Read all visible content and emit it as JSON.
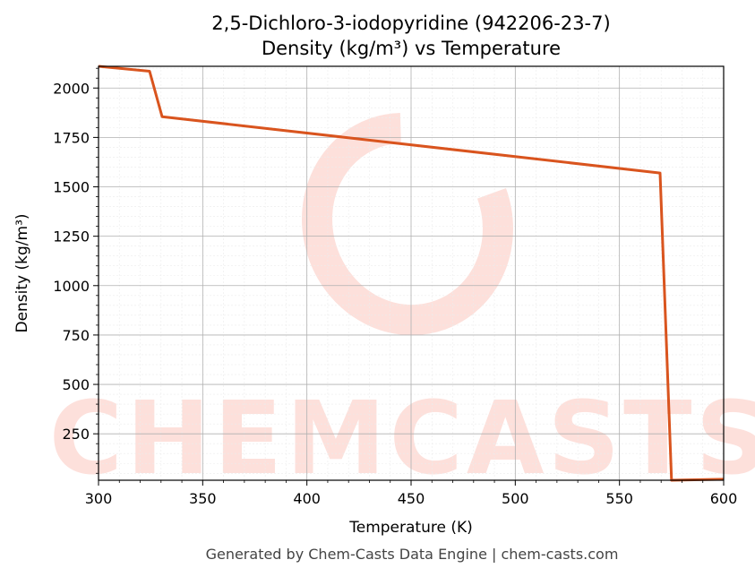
{
  "chart_data": {
    "type": "line",
    "title": "2,5-Dichloro-3-iodopyridine (942206-23-7)",
    "subtitle": "Density (kg/m³) vs Temperature",
    "xlabel": "Temperature (K)",
    "ylabel": "Density (kg/m³)",
    "xlim": [
      300,
      600
    ],
    "ylim": [
      15,
      2110
    ],
    "x_ticks": [
      300,
      350,
      400,
      450,
      500,
      550,
      600
    ],
    "y_ticks": [
      250,
      500,
      750,
      1000,
      1250,
      1500,
      1750,
      2000
    ],
    "grid": true,
    "legend": "none",
    "series": [
      {
        "color": "#d9541e",
        "x": [
          300,
          324.5,
          330.5,
          569.5,
          575,
          600
        ],
        "y": [
          2110,
          2085,
          1855,
          1570,
          15,
          20
        ]
      }
    ]
  },
  "watermark": {
    "text": "CHEMCASTS",
    "color": "#fde0db"
  },
  "footer": {
    "text": "Generated by Chem-Casts Data Engine | chem-casts.com"
  }
}
